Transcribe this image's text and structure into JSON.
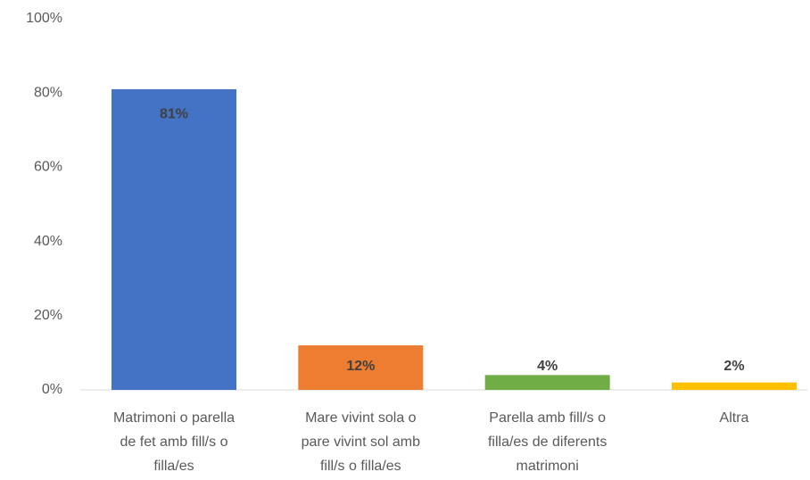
{
  "chart_data": {
    "type": "bar",
    "categories": [
      "Matrimoni o parella de fet amb fill/s o filla/es",
      "Mare vivint sola o pare vivint sol amb fill/s o filla/es",
      "Parella amb fill/s o filla/es de diferents matrimoni",
      "Altra"
    ],
    "values": [
      81,
      12,
      4,
      2
    ],
    "value_labels": [
      "81%",
      "12%",
      "4%",
      "2%"
    ],
    "colors": [
      "#4472c4",
      "#ed7d31",
      "#70ad47",
      "#ffc000"
    ],
    "ylim": [
      0,
      100
    ],
    "yticks": [
      {
        "value": 0,
        "label": "0%"
      },
      {
        "value": 20,
        "label": "20%"
      },
      {
        "value": 40,
        "label": "40%"
      },
      {
        "value": 60,
        "label": "60%"
      },
      {
        "value": 80,
        "label": "80%"
      },
      {
        "value": 100,
        "label": "100%"
      }
    ],
    "grid": false
  }
}
